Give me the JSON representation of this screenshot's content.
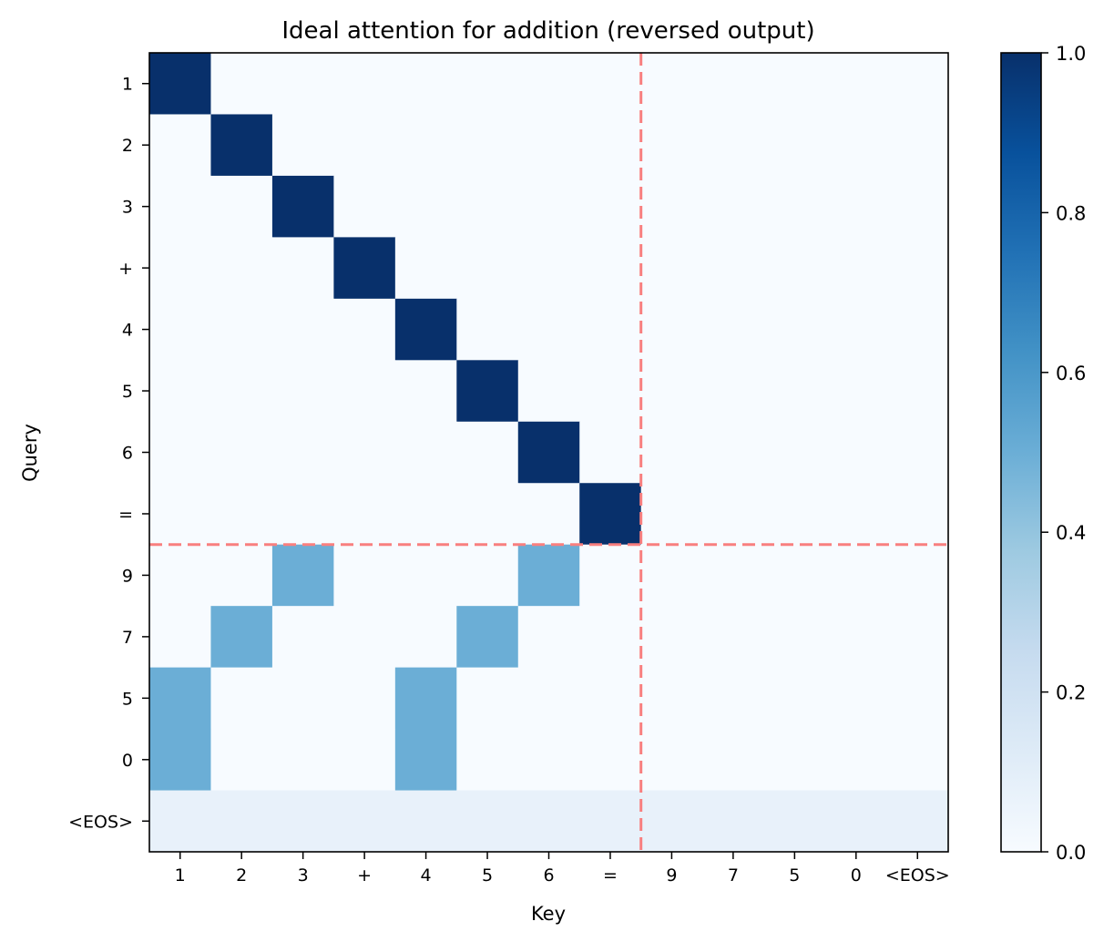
{
  "chart_data": {
    "type": "heatmap",
    "title": "Ideal attention for addition (reversed output)",
    "xlabel": "Key",
    "ylabel": "Query",
    "x_tick_labels": [
      "1",
      "2",
      "3",
      "+",
      "4",
      "5",
      "6",
      "=",
      "9",
      "7",
      "5",
      "0",
      "<EOS>"
    ],
    "y_tick_labels": [
      "1",
      "2",
      "3",
      "+",
      "4",
      "5",
      "6",
      "=",
      "9",
      "7",
      "5",
      "0",
      "<EOS>"
    ],
    "colormap": "Blues",
    "vmin": 0.0,
    "vmax": 1.0,
    "colorbar_ticks": [
      "0.0",
      "0.2",
      "0.4",
      "0.6",
      "0.8",
      "1.0"
    ],
    "values": [
      [
        1,
        0,
        0,
        0,
        0,
        0,
        0,
        0,
        0,
        0,
        0,
        0,
        0
      ],
      [
        0,
        1,
        0,
        0,
        0,
        0,
        0,
        0,
        0,
        0,
        0,
        0,
        0
      ],
      [
        0,
        0,
        1,
        0,
        0,
        0,
        0,
        0,
        0,
        0,
        0,
        0,
        0
      ],
      [
        0,
        0,
        0,
        1,
        0,
        0,
        0,
        0,
        0,
        0,
        0,
        0,
        0
      ],
      [
        0,
        0,
        0,
        0,
        1,
        0,
        0,
        0,
        0,
        0,
        0,
        0,
        0
      ],
      [
        0,
        0,
        0,
        0,
        0,
        1,
        0,
        0,
        0,
        0,
        0,
        0,
        0
      ],
      [
        0,
        0,
        0,
        0,
        0,
        0,
        1,
        0,
        0,
        0,
        0,
        0,
        0
      ],
      [
        0,
        0,
        0,
        0,
        0,
        0,
        0,
        1,
        0,
        0,
        0,
        0,
        0
      ],
      [
        0,
        0,
        0.5,
        0,
        0,
        0,
        0.5,
        0,
        0,
        0,
        0,
        0,
        0
      ],
      [
        0,
        0.5,
        0,
        0,
        0,
        0.5,
        0,
        0,
        0,
        0,
        0,
        0,
        0
      ],
      [
        0.5,
        0,
        0,
        0,
        0.5,
        0,
        0,
        0,
        0,
        0,
        0,
        0,
        0
      ],
      [
        0.5,
        0,
        0,
        0,
        0.5,
        0,
        0,
        0,
        0,
        0,
        0,
        0,
        0
      ],
      [
        0.077,
        0.077,
        0.077,
        0.077,
        0.077,
        0.077,
        0.077,
        0.077,
        0.077,
        0.077,
        0.077,
        0.077,
        0.077
      ]
    ],
    "separator_lines": {
      "color": "#f87f7f",
      "style": "dashed",
      "vertical_after_key_index": 7,
      "horizontal_after_query_index": 7
    }
  }
}
